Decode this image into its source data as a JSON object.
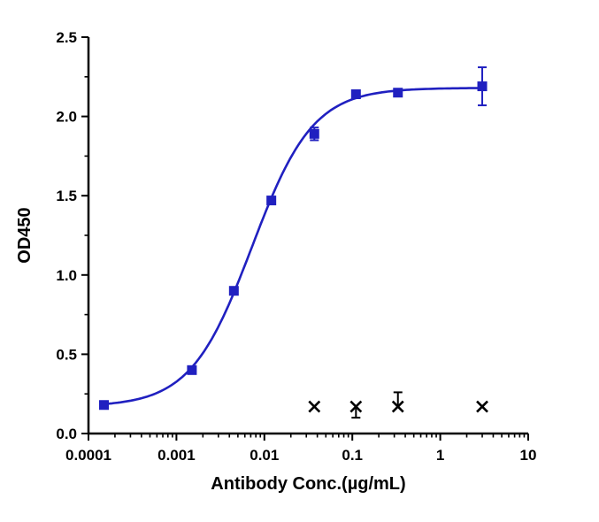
{
  "figure": {
    "background": "#ffffff"
  },
  "chart_data": {
    "type": "scatter",
    "title": "",
    "xlabel": "Antibody Conc.(µg/mL)",
    "ylabel": "OD450",
    "x_scale": "log",
    "xlim": [
      0.0001,
      10
    ],
    "ylim": [
      0.0,
      2.5
    ],
    "x_ticks": [
      0.0001,
      0.001,
      0.01,
      0.1,
      1,
      10
    ],
    "x_tick_labels": [
      "0.0001",
      "0.001",
      "0.01",
      "0.1",
      "1",
      "10"
    ],
    "y_ticks": [
      0.0,
      0.5,
      1.0,
      1.5,
      2.0,
      2.5
    ],
    "y_tick_labels": [
      "0.0",
      "0.5",
      "1.0",
      "1.5",
      "2.0",
      "2.5"
    ],
    "y_minor_ticks": [
      0.25,
      0.75,
      1.25,
      1.75,
      2.25
    ],
    "grid": false,
    "legend": "none",
    "axis_color": "#000000",
    "series": [
      {
        "name": "antibody-binding",
        "marker": "square",
        "color": "#2020C0",
        "points": [
          {
            "x": 0.00015,
            "y": 0.18,
            "err_up": 0,
            "err_down": 0
          },
          {
            "x": 0.0015,
            "y": 0.4,
            "err_up": 0,
            "err_down": 0
          },
          {
            "x": 0.0045,
            "y": 0.9,
            "err_up": 0,
            "err_down": 0
          },
          {
            "x": 0.012,
            "y": 1.47,
            "err_up": 0,
            "err_down": 0
          },
          {
            "x": 0.037,
            "y": 1.89,
            "err_up": 0.04,
            "err_down": 0.04
          },
          {
            "x": 0.11,
            "y": 2.14,
            "err_up": 0,
            "err_down": 0
          },
          {
            "x": 0.33,
            "y": 2.15,
            "err_up": 0,
            "err_down": 0
          },
          {
            "x": 3.0,
            "y": 2.19,
            "err_up": 0.12,
            "err_down": 0.12
          }
        ],
        "fit": {
          "model": "4PL",
          "bottom": 0.17,
          "top": 2.18,
          "ec50": 0.0072,
          "hill": 1.25
        }
      },
      {
        "name": "control",
        "marker": "x",
        "color": "#000000",
        "points": [
          {
            "x": 0.037,
            "y": 0.17,
            "err_up": 0,
            "err_down": 0
          },
          {
            "x": 0.11,
            "y": 0.17,
            "err_up": 0,
            "err_down": 0.07
          },
          {
            "x": 0.33,
            "y": 0.17,
            "err_up": 0.09,
            "err_down": 0
          },
          {
            "x": 3.0,
            "y": 0.17,
            "err_up": 0,
            "err_down": 0
          }
        ]
      }
    ]
  }
}
